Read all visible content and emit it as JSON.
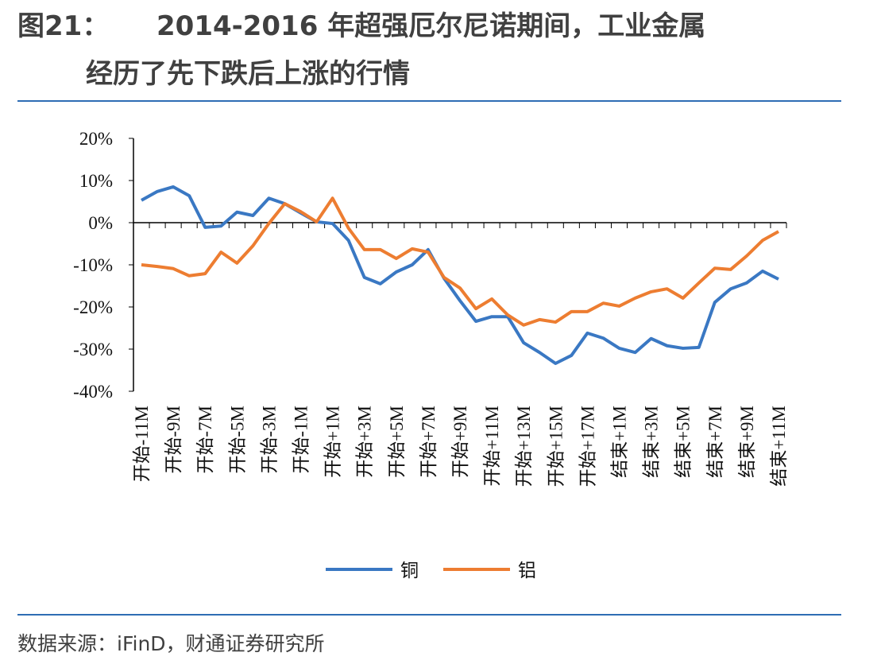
{
  "chart_data": {
    "type": "line",
    "title_number": "图21：",
    "title": [
      "2014-2016 年超强厄尔尼诺期间，工业金属",
      "经历了先下跌后上涨的行情"
    ],
    "source": "数据来源：iFinD，财通证券研究所",
    "categories": [
      "开始-11M",
      null,
      "开始-9M",
      null,
      "开始-7M",
      null,
      "开始-5M",
      null,
      "开始-3M",
      null,
      "开始-1M",
      null,
      "开始+1M",
      null,
      "开始+3M",
      null,
      "开始+5M",
      null,
      "开始+7M",
      null,
      "开始+9M",
      null,
      "开始+11M",
      null,
      "开始+13M",
      null,
      "开始+15M",
      null,
      "开始+17M",
      null,
      "结束+1M",
      null,
      "结束+3M",
      null,
      "结束+5M",
      null,
      "结束+7M",
      null,
      "结束+9M",
      null,
      "结束+11M"
    ],
    "series": [
      {
        "name": "铜",
        "color": "#3a78c3",
        "values": [
          5.3,
          7.4,
          8.5,
          6.4,
          -1.1,
          -0.8,
          2.5,
          1.7,
          5.8,
          4.5,
          2.3,
          0.2,
          -0.2,
          -4.2,
          -13,
          -14.5,
          -11.7,
          -10,
          -6.4,
          -13.2,
          -18.5,
          -23.4,
          -22.3,
          -22.3,
          -28.5,
          -30.8,
          -33.4,
          -31.5,
          -26.2,
          -27.4,
          -29.8,
          -30.8,
          -27.5,
          -29.2,
          -29.8,
          -29.6,
          -18.9,
          -15.7,
          -14.3,
          -11.5,
          -13.4
        ]
      },
      {
        "name": "铝",
        "color": "#ed7d31",
        "values": [
          -10,
          -10.4,
          -10.9,
          -12.6,
          -12.1,
          -7,
          -9.6,
          -5.5,
          -0.2,
          4.5,
          2.6,
          0.2,
          5.8,
          -1.3,
          -6.4,
          -6.4,
          -8.5,
          -6.2,
          -7,
          -13,
          -15.5,
          -20.4,
          -18.1,
          -21.9,
          -24.3,
          -23,
          -23.6,
          -21.1,
          -21.1,
          -19.1,
          -19.8,
          -17.9,
          -16.4,
          -15.7,
          -17.9,
          -14.3,
          -10.8,
          -11.1,
          -7.9,
          -4.2,
          -2.1
        ]
      }
    ],
    "ylim": [
      -40,
      20
    ],
    "yticks": [
      {
        "value": -40,
        "label": "-40%"
      },
      {
        "value": -30,
        "label": "-30%"
      },
      {
        "value": -20,
        "label": "-20%"
      },
      {
        "value": -10,
        "label": "-10%"
      },
      {
        "value": 0,
        "label": "0%"
      },
      {
        "value": 10,
        "label": "10%"
      },
      {
        "value": 20,
        "label": "20%"
      }
    ]
  }
}
